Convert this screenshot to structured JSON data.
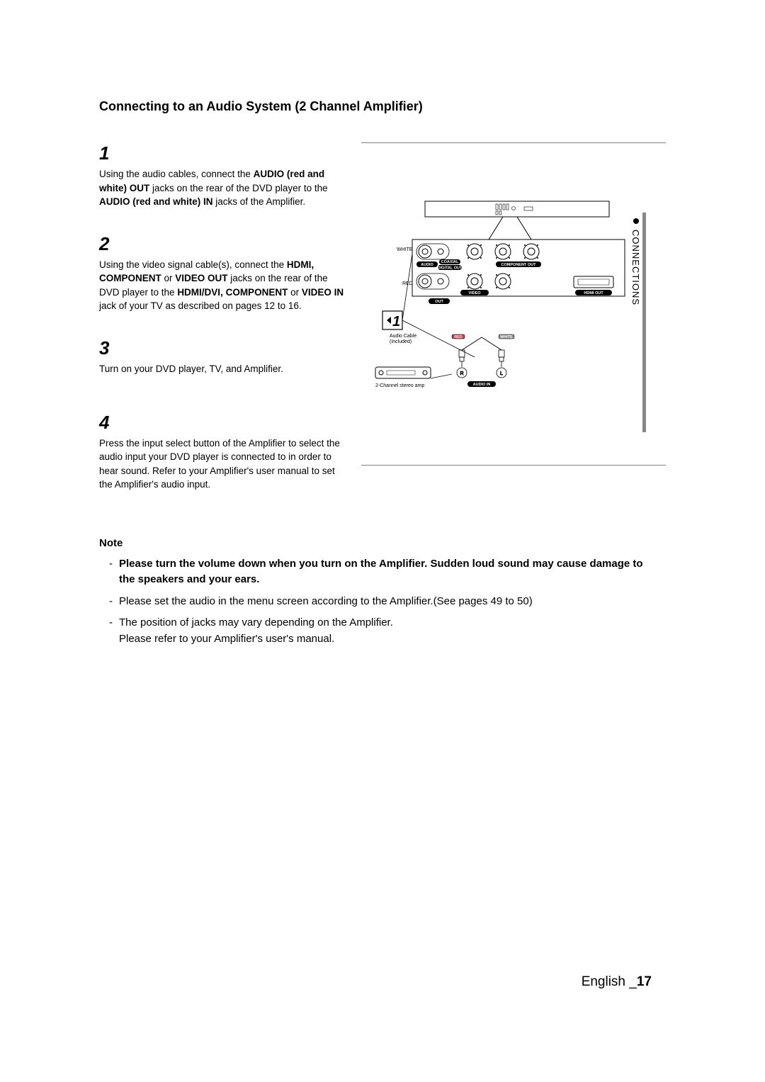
{
  "title": "Connecting to an Audio System (2 Channel Amplifier)",
  "steps": {
    "s1": {
      "num": "1",
      "html": "Using the audio cables, connect the <b>AUDIO (red and white) OUT</b> jacks on the rear of the DVD player to the <b>AUDIO (red and white) IN</b> jacks of the Amplifier."
    },
    "s2": {
      "num": "2",
      "html": "Using the video signal cable(s), connect the <b>HDMI, COMPONENT</b> or <b>VIDEO OUT</b> jacks on the rear of the DVD player to the <b>HDMI/DVI, COMPONENT</b> or <b>VIDEO IN</b> jack of your TV as described on pages 12 to 16."
    },
    "s3": {
      "num": "3",
      "html": "Turn on your DVD player, TV, and Amplifier."
    },
    "s4": {
      "num": "4",
      "html": "Press the input select button of the Amplifier to select the audio input your DVD player is connected to in order to hear sound. Refer to your Amplifier's user manual to set the Amplifier's audio input."
    }
  },
  "sidebar": {
    "label": "CONNECTIONS"
  },
  "note": {
    "heading": "Note",
    "items": [
      "<b>Please turn the volume down when you turn on the Amplifier. Sudden loud sound may cause damage to the speakers and your ears.</b>",
      "Please set the audio in the menu screen according to the Amplifier.(See pages 49 to 50)",
      "The position of jacks may vary depending on the Amplifier.<br>Please refer to your Amplifier's user's manual."
    ]
  },
  "footer": {
    "lang": "English _",
    "page": "17"
  },
  "diagram": {
    "labels": {
      "white": "WHITE",
      "red": "RED",
      "red2": "RED",
      "white2": "WHITE",
      "audio_cable": "Audio Cable",
      "included": "(Included)",
      "amp": "2-Channel stereo amp",
      "audio_in": "AUDIO IN"
    },
    "pills": {
      "audio": "AUDIO",
      "coaxial": "COAXIAL",
      "digiout": "DIGITAL OUT",
      "compout": "COMPONENT OUT",
      "video": "VIDEO",
      "out": "OUT",
      "hdmi": "HDMI OUT"
    },
    "callout": "1",
    "colors": {
      "stroke": "#000000",
      "red": "#c04040",
      "grey": "#888888"
    }
  }
}
